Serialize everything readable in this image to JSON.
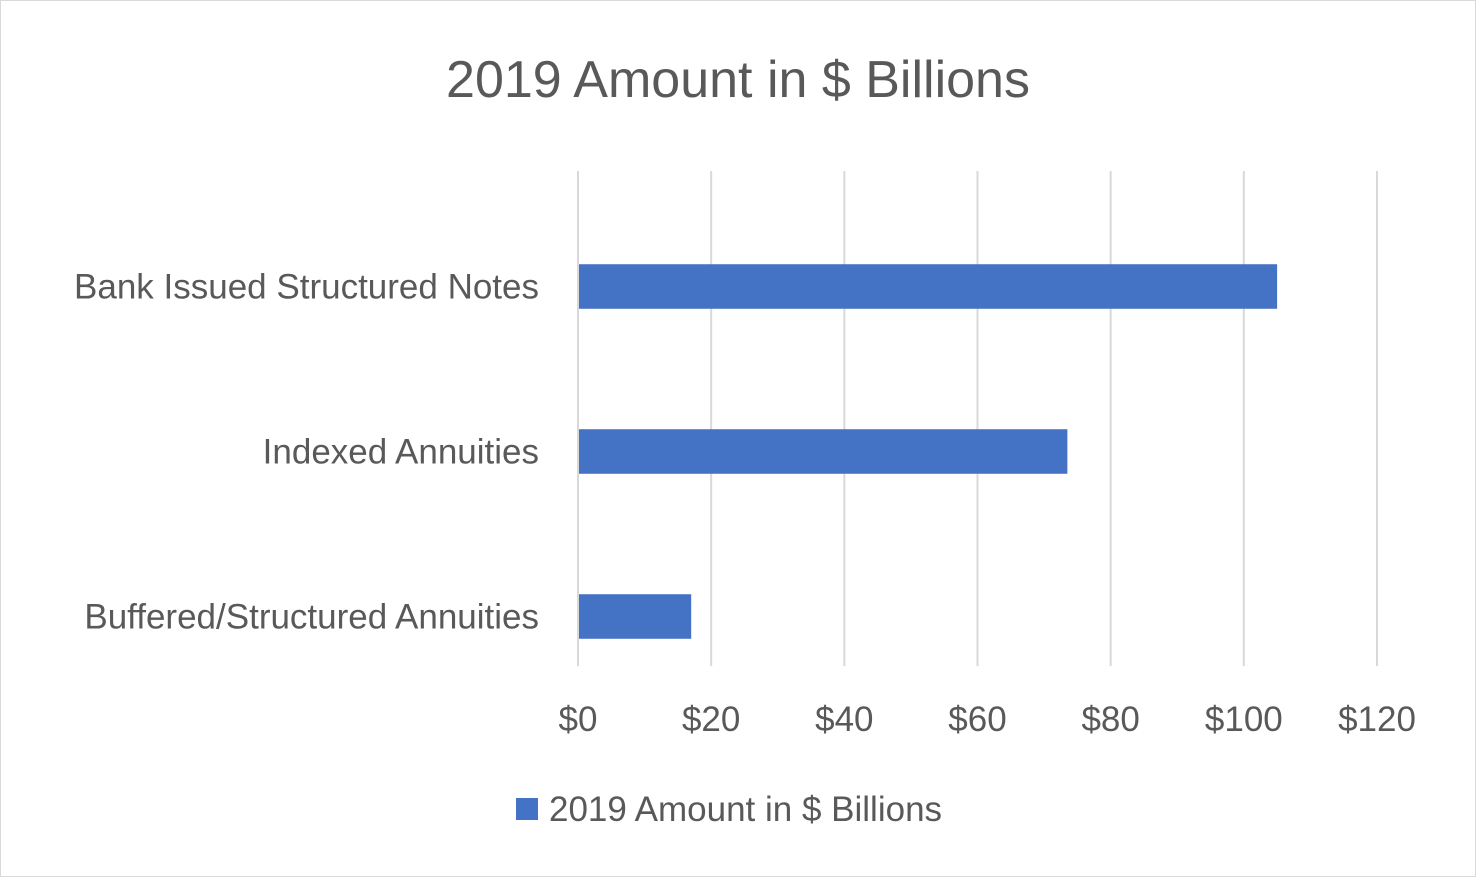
{
  "chart_data": {
    "type": "bar",
    "orientation": "horizontal",
    "title": "2019 Amount in $ Billions",
    "categories": [
      "Bank Issued Structured Notes",
      "Indexed Annuities",
      "Buffered/Structured Annuities"
    ],
    "series": [
      {
        "name": "2019 Amount in $ Billions",
        "values": [
          105,
          73.5,
          17
        ],
        "color": "#4472c4"
      }
    ],
    "xlim": [
      0,
      120
    ],
    "x_ticks": [
      0,
      20,
      40,
      60,
      80,
      100,
      120
    ],
    "x_tick_labels": [
      "$0",
      "$20",
      "$40",
      "$60",
      "$80",
      "$100",
      "$120"
    ],
    "grid": true,
    "legend_position": "bottom",
    "gridline_color": "#d9d9d9",
    "text_color": "#595959"
  }
}
